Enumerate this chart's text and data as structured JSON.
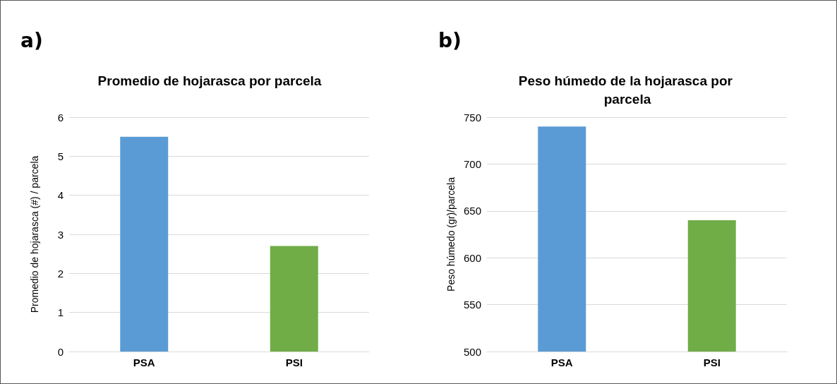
{
  "chart_data": [
    {
      "type": "bar",
      "title": "Promedio de hojarasca por parcela",
      "ylabel": "Promedio de hojarasca (#) / parcela",
      "categories": [
        "PSA",
        "PSI"
      ],
      "colors": [
        "#5b9bd5",
        "#70ad47"
      ],
      "values": [
        5.5,
        2.7
      ],
      "ylim": [
        0,
        6
      ],
      "yticks": [
        0,
        1,
        2,
        3,
        4,
        5,
        6
      ],
      "grid": "y",
      "annotations": [
        "a)"
      ]
    },
    {
      "type": "bar",
      "title": "Peso húmedo de la hojarasca por parcela",
      "ylabel": "Peso húmedo (gr)/parcela",
      "categories": [
        "PSA",
        "PSI"
      ],
      "colors": [
        "#5b9bd5",
        "#70ad47"
      ],
      "values": [
        740,
        640
      ],
      "ylim": [
        500,
        750
      ],
      "yticks": [
        500,
        550,
        600,
        650,
        700,
        750
      ],
      "grid": "y",
      "annotations": [
        "b)"
      ]
    }
  ]
}
